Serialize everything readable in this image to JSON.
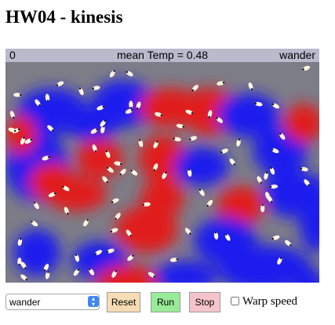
{
  "page": {
    "title": "HW04 - kinesis"
  },
  "sim": {
    "status": {
      "tick": "0",
      "mean_temp": "mean Temp = 0.48",
      "mode": "wander"
    },
    "colors": {
      "hot": "#e11a1a",
      "neutral": "#8a8a8a",
      "cold": "#1a1aee",
      "agent_body": "#fff5e1",
      "agent_head": "#101010"
    }
  },
  "controls": {
    "mode_select": {
      "selected": "wander",
      "options": [
        "wander"
      ]
    },
    "reset_label": "Reset",
    "run_label": "Run",
    "stop_label": "Stop",
    "warp_label": "Warp speed",
    "warp_checked": false
  }
}
